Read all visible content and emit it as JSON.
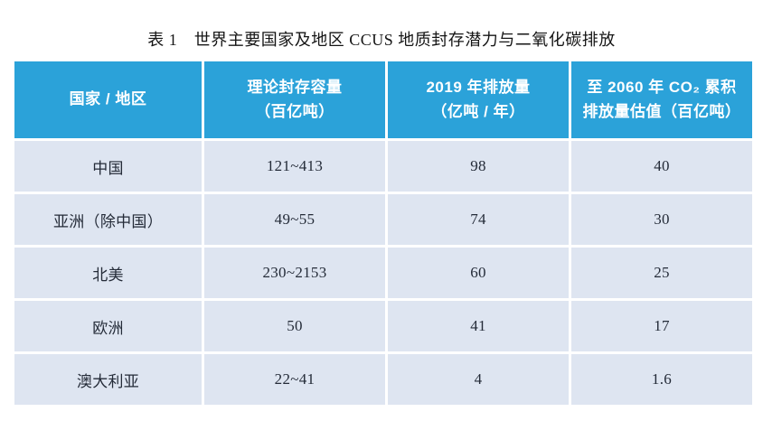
{
  "title": "表 1　世界主要国家及地区 CCUS 地质封存潜力与二氧化碳排放",
  "colors": {
    "header_bg": "#2BA2D9",
    "header_text": "#FFFFFF",
    "cell_bg": "#DEE5F1",
    "cell_text": "#242B38",
    "page_bg": "#FFFFFF"
  },
  "table": {
    "columns": [
      {
        "line1": "国家 / 地区",
        "line2": ""
      },
      {
        "line1": "理论封存容量",
        "line2": "（百亿吨）"
      },
      {
        "line1": "2019 年排放量",
        "line2": "（亿吨 / 年）"
      },
      {
        "line1": "至 2060 年 CO₂ 累积",
        "line2": "排放量估值（百亿吨）"
      }
    ],
    "rows": [
      {
        "region": "中国",
        "capacity": "121~413",
        "emission_2019": "98",
        "cumulative_2060": "40"
      },
      {
        "region": "亚洲（除中国）",
        "capacity": "49~55",
        "emission_2019": "74",
        "cumulative_2060": "30"
      },
      {
        "region": "北美",
        "capacity": "230~2153",
        "emission_2019": "60",
        "cumulative_2060": "25"
      },
      {
        "region": "欧洲",
        "capacity": "50",
        "emission_2019": "41",
        "cumulative_2060": "17"
      },
      {
        "region": "澳大利亚",
        "capacity": "22~41",
        "emission_2019": "4",
        "cumulative_2060": "1.6"
      }
    ]
  },
  "chart_data": {
    "type": "table",
    "title": "表 1　世界主要国家及地区 CCUS 地质封存潜力与二氧化碳排放",
    "columns": [
      "国家 / 地区",
      "理论封存容量（百亿吨）",
      "2019 年排放量（亿吨 / 年）",
      "至 2060 年 CO₂ 累积排放量估值（百亿吨）"
    ],
    "rows": [
      [
        "中国",
        "121~413",
        98,
        40
      ],
      [
        "亚洲（除中国）",
        "49~55",
        74,
        30
      ],
      [
        "北美",
        "230~2153",
        60,
        25
      ],
      [
        "欧洲",
        "50",
        41,
        17
      ],
      [
        "澳大利亚",
        "22~41",
        4,
        1.6
      ]
    ]
  }
}
